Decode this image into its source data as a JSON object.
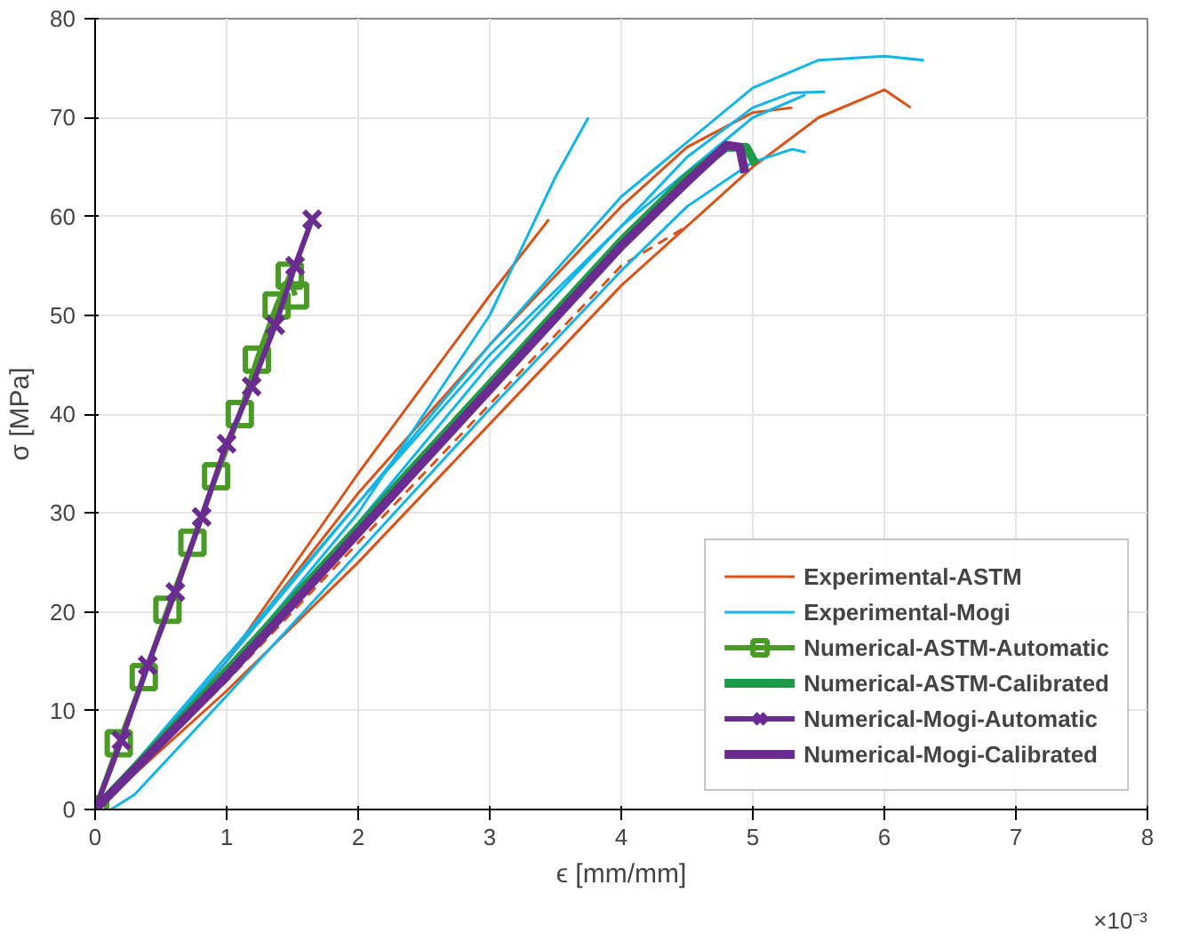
{
  "chart_data": {
    "type": "line",
    "xlabel": "ϵ [mm/mm]",
    "ylabel": "σ [MPa]",
    "xlim": [
      0,
      8
    ],
    "xticks": [
      0,
      1,
      2,
      3,
      4,
      5,
      6,
      7,
      8
    ],
    "ylim": [
      0,
      80
    ],
    "yticks": [
      0,
      10,
      20,
      30,
      40,
      50,
      60,
      70,
      80
    ],
    "grid": true,
    "legend": "bottom right",
    "annotations": [
      "×10⁻³"
    ],
    "series": [
      {
        "name": "Experimental-ASTM",
        "color": "#d95319",
        "x": [
          0,
          0.5,
          1,
          2,
          3,
          3.45
        ],
        "values": [
          0,
          7,
          15,
          34,
          52,
          59.7
        ]
      },
      {
        "color": "#d95319",
        "x": [
          0,
          1,
          2,
          3,
          4,
          5,
          5.5,
          6,
          6.2
        ],
        "values": [
          0,
          12,
          25,
          39,
          53,
          65,
          70,
          72.8,
          71
        ]
      },
      {
        "color": "#d95319",
        "x": [
          0,
          1,
          2,
          3,
          4,
          4.5,
          5,
          5.3
        ],
        "values": [
          0,
          15,
          32,
          47,
          61,
          67,
          70.5,
          71
        ]
      },
      {
        "color": "#d95319",
        "x": [
          0,
          1,
          2,
          3,
          4,
          4.5
        ],
        "values": [
          0,
          13,
          27,
          41,
          55,
          59
        ],
        "line_style": "dashed"
      },
      {
        "name": "Experimental-Mogi",
        "color": "#12b5e8",
        "x": [
          0,
          1,
          2,
          3,
          3.5,
          3.75
        ],
        "values": [
          0,
          14,
          30,
          50,
          64,
          70
        ]
      },
      {
        "color": "#12b5e8",
        "x": [
          0,
          1,
          2,
          3,
          4,
          5,
          5.5,
          6,
          6.3
        ],
        "values": [
          0,
          15,
          31,
          47,
          62,
          73,
          75.8,
          76.2,
          75.8
        ]
      },
      {
        "color": "#12b5e8",
        "x": [
          0,
          2,
          3,
          4,
          4.5,
          5,
          5.3,
          5.55
        ],
        "values": [
          0,
          31,
          46,
          59,
          66,
          71,
          72.5,
          72.6
        ]
      },
      {
        "color": "#12b5e8",
        "x": [
          0,
          1,
          2,
          3,
          4,
          5,
          5.4
        ],
        "values": [
          0,
          14,
          29,
          45,
          59,
          70,
          72.3
        ]
      },
      {
        "color": "#12b5e8",
        "x": [
          0.12,
          0.3,
          1,
          2,
          3,
          4,
          4.5,
          5,
          5.3,
          5.4
        ],
        "values": [
          0,
          1.5,
          11.5,
          26,
          40.5,
          54.5,
          61,
          65.5,
          66.8,
          66.5
        ]
      },
      {
        "name": "Numerical-ASTM-Automatic",
        "color": "#4a9a26",
        "marker": "square",
        "x": [
          0,
          0.18,
          0.37,
          0.55,
          0.74,
          0.92,
          1.1,
          1.23,
          1.38,
          1.48,
          1.52
        ],
        "values": [
          0,
          6.7,
          13.4,
          20.2,
          27,
          33.7,
          40,
          45.5,
          51,
          54,
          52
        ]
      },
      {
        "name": "Numerical-ASTM-Calibrated",
        "color": "#1f9a48",
        "marker": "none",
        "x": [
          0,
          1,
          2,
          3,
          4,
          4.5,
          4.8,
          4.95,
          5.02
        ],
        "values": [
          0,
          14,
          28.5,
          43,
          57.5,
          64,
          67,
          67,
          65.3
        ]
      },
      {
        "name": "Numerical-Mogi-Automatic",
        "color": "#6a2c91",
        "marker": "cross",
        "x": [
          0,
          0.2,
          0.4,
          0.61,
          0.81,
          1.0,
          1.19,
          1.37,
          1.52,
          1.65
        ],
        "values": [
          0,
          7,
          14.6,
          22,
          29.6,
          37,
          42.8,
          49,
          55,
          59.7
        ]
      },
      {
        "name": "Numerical-Mogi-Calibrated",
        "color": "#6a2c91",
        "marker": "none",
        "x": [
          0,
          1,
          2,
          3,
          4,
          4.5,
          4.8,
          4.9,
          4.94
        ],
        "values": [
          0,
          13.5,
          28,
          42.5,
          57,
          63.5,
          67.2,
          67,
          64.4
        ]
      }
    ]
  }
}
